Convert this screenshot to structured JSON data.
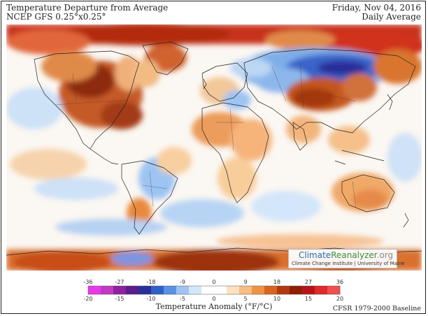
{
  "header": {
    "title": "Temperature Departure from Average",
    "model": "NCEP GFS 0.25°x0.25°",
    "date": "Friday, Nov 04, 2016",
    "average": "Daily Average"
  },
  "legend": {
    "title": "Temperature Anomaly (°F/°C)",
    "fahrenheit_ticks": [
      "-36",
      "-27",
      "-18",
      "-9",
      "0",
      "9",
      "18",
      "27",
      "36"
    ],
    "celsius_ticks": [
      "-20",
      "-15",
      "-10",
      "-5",
      "0",
      "5",
      "10",
      "15",
      "20"
    ],
    "celsius_range": [
      -20,
      20
    ],
    "colors": [
      "#e838e8",
      "#c13ac4",
      "#9020a0",
      "#5a1d8c",
      "#2a2f9a",
      "#2f5fc8",
      "#5a92e2",
      "#9dc4f2",
      "#d3e6fa",
      "#ffffff",
      "#ffffff",
      "#fde2c2",
      "#f8bd84",
      "#ef9246",
      "#d9631f",
      "#b23a10",
      "#8e1e08",
      "#b5151a",
      "#dd2a2a",
      "#ef5050"
    ]
  },
  "baseline": "CFSR 1979-2000 Baseline",
  "logo": {
    "name_part1": "Climate",
    "name_part2": "Reanalyzer",
    "name_part3": ".org",
    "subtitle": "Climate Change Institute | University of Maine"
  }
}
